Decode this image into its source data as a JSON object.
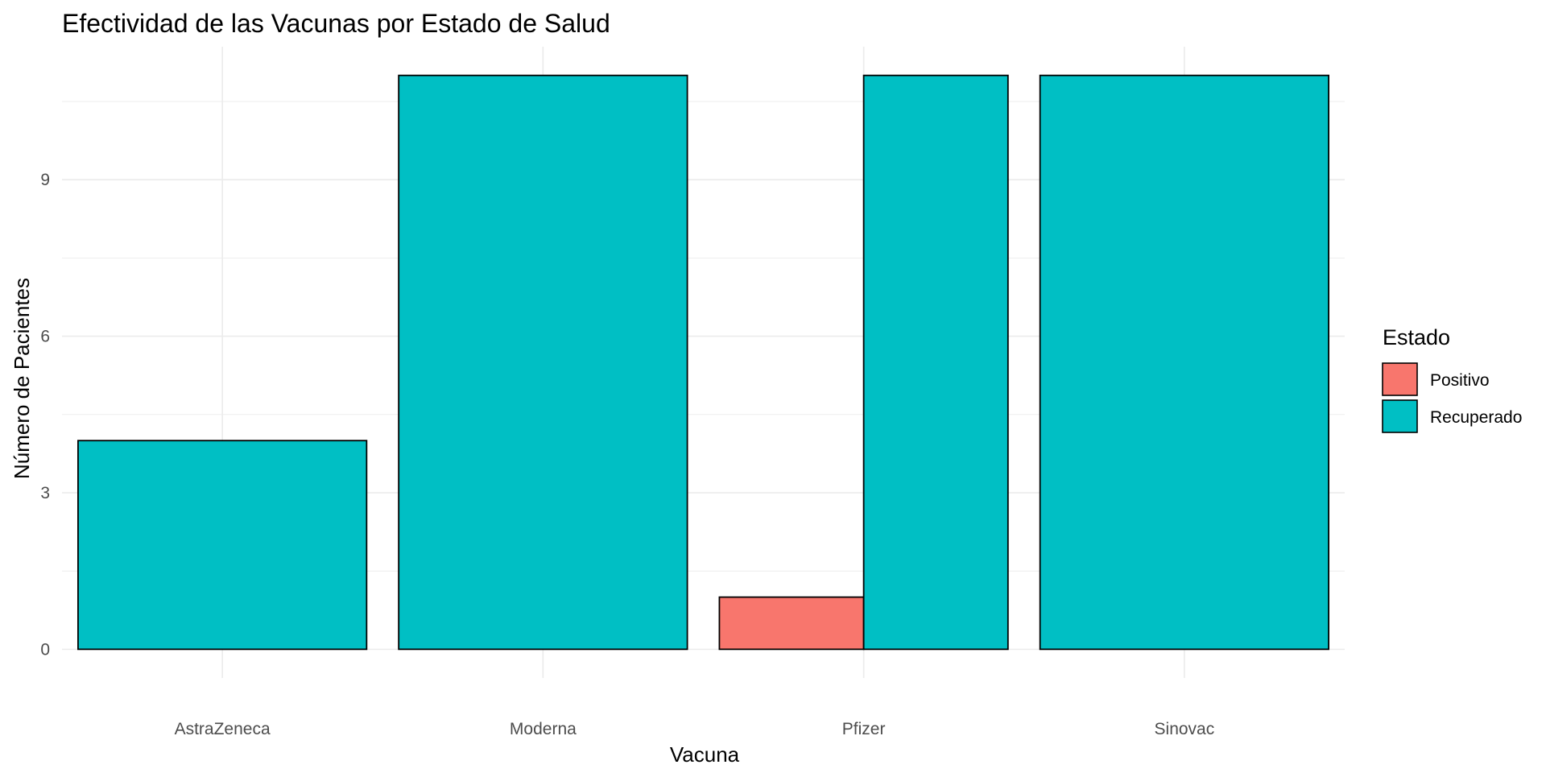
{
  "chart_data": {
    "type": "bar",
    "title": "Efectividad de las Vacunas por Estado de Salud",
    "xlabel": "Vacuna",
    "ylabel": "Número de Pacientes",
    "categories": [
      "AstraZeneca",
      "Moderna",
      "Pfizer",
      "Sinovac"
    ],
    "series": [
      {
        "name": "Positivo",
        "color": "#F8766D",
        "values": [
          0,
          0,
          1,
          0
        ]
      },
      {
        "name": "Recuperado",
        "color": "#00BFC4",
        "values": [
          4,
          11,
          11,
          11
        ]
      }
    ],
    "yticks": [
      0,
      3,
      6,
      9
    ],
    "ylim": [
      0,
      11
    ],
    "grid": true,
    "legend": {
      "title": "Estado",
      "position": "right"
    }
  }
}
